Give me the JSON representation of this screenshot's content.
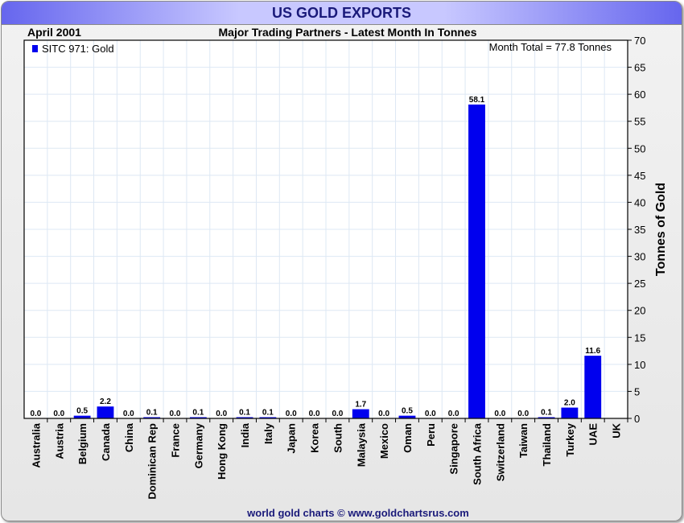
{
  "title": "US GOLD EXPORTS",
  "date_label": "April 2001",
  "subtitle": "Major Trading Partners - Latest Month In Tonnes",
  "month_total": "Month Total = 77.8 Tonnes",
  "footer": "world gold charts © www.goldchartsrus.com",
  "colors": {
    "bar": "#0000ee",
    "grid": "#dde8f4"
  },
  "chart_data": {
    "type": "bar",
    "title": "US GOLD EXPORTS",
    "legend": [
      "SITC 971: Gold"
    ],
    "legend_position": "top-left",
    "ylabel": "Tonnes of Gold",
    "ylim": [
      0,
      70
    ],
    "ytick_step": 5,
    "grid": true,
    "categories": [
      "Australia",
      "Austria",
      "Belgium",
      "Canada",
      "China",
      "Dominican Rep",
      "France",
      "Germany",
      "Hong Kong",
      "India",
      "Italy",
      "Japan",
      "Korea",
      "South",
      "Malaysia",
      "Mexico",
      "Oman",
      "Peru",
      "Singapore",
      "South Africa",
      "Switzerland",
      "Taiwan",
      "Thailand",
      "Turkey",
      "UAE",
      "UK"
    ],
    "values": [
      0.0,
      0.0,
      0.5,
      2.2,
      0.0,
      0.1,
      0.0,
      0.1,
      0.0,
      0.1,
      0.1,
      0.0,
      0.0,
      0.0,
      1.7,
      0.0,
      0.5,
      0.0,
      0.0,
      58.1,
      0.0,
      0.0,
      0.1,
      2.0,
      11.6,
      null
    ],
    "value_labels": [
      "0.0",
      "0.0",
      "0.5",
      "2.2",
      "0.0",
      "0.1",
      "0.0",
      "0.1",
      "0.0",
      "0.1",
      "0.1",
      "0.0",
      "0.0",
      "0.0",
      "1.7",
      "0.0",
      "0.5",
      "0.0",
      "0.0",
      "58.1",
      "0.0",
      "0.0",
      "0.1",
      "2.0",
      "11.6",
      ""
    ]
  }
}
